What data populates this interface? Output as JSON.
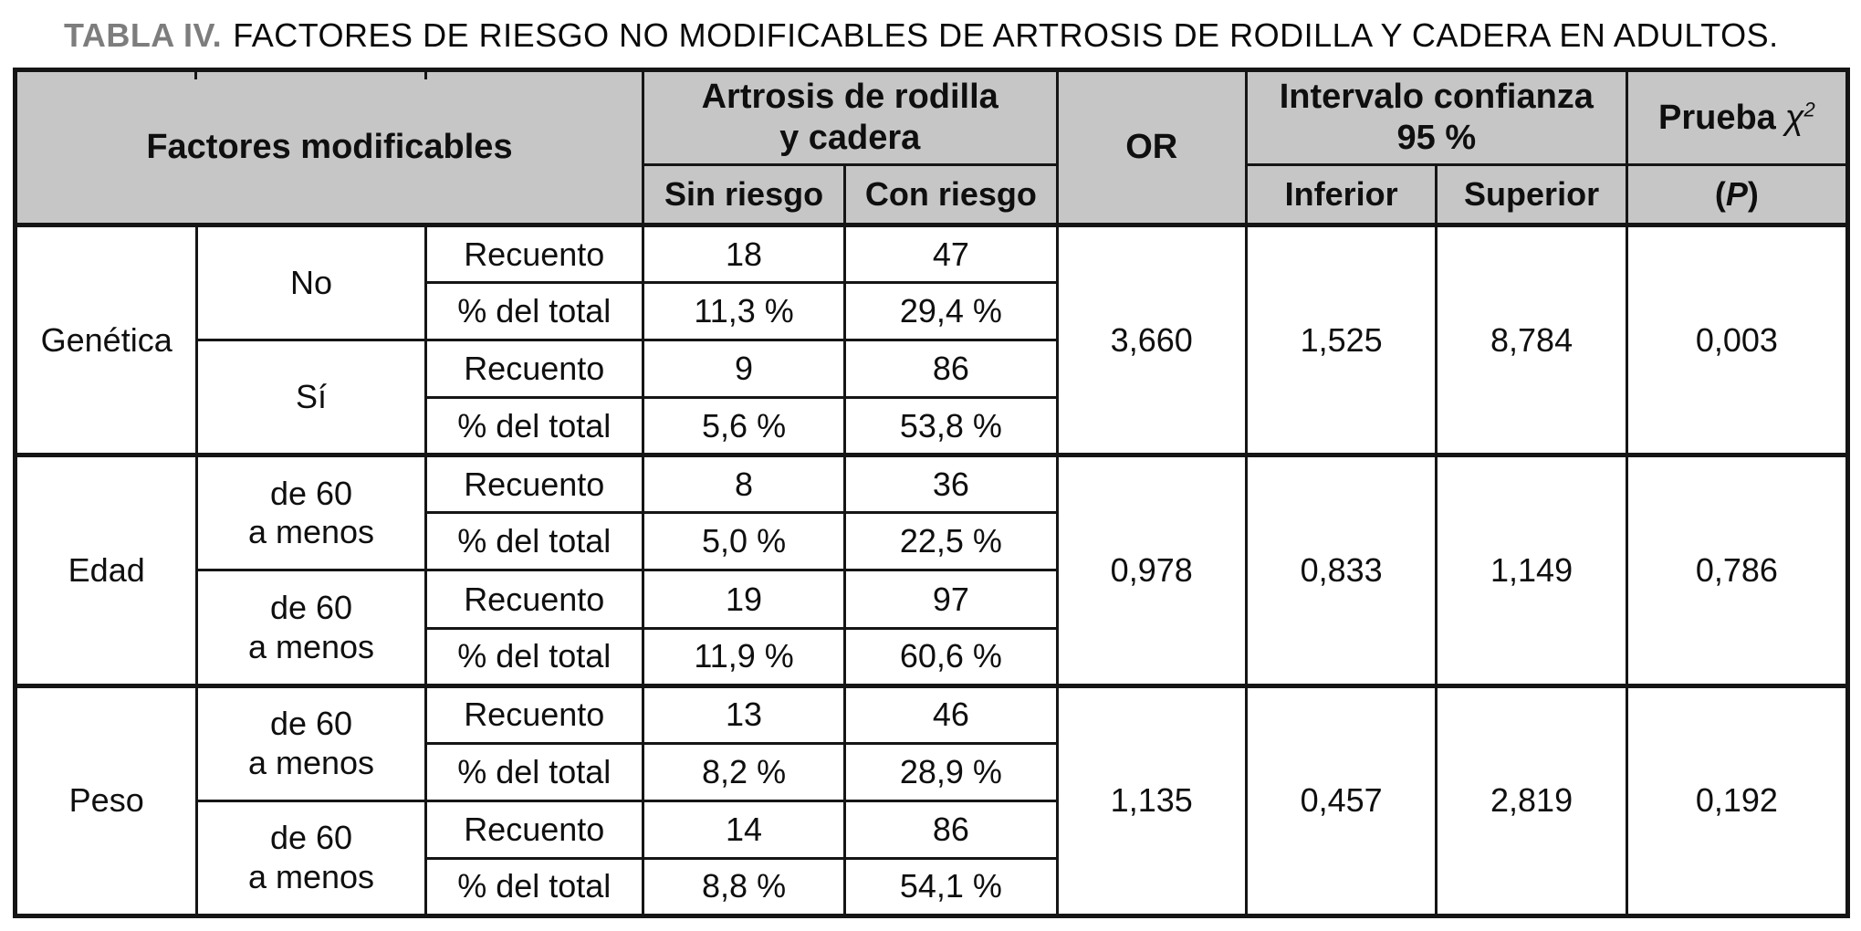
{
  "title": {
    "tag": "TABLA IV.",
    "text": "FACTORES DE RIESGO NO MODIFICABLES DE ARTROSIS DE RODILLA Y CADERA EN ADULTOS."
  },
  "colors": {
    "header_bg": "#c6c6c6",
    "border": "#151515",
    "title_tag": "#7d7d7d",
    "text": "#0f0f0f"
  },
  "header": {
    "factores": "Factores modificables",
    "artrosis": "Artrosis de rodilla\ny cadera",
    "sin_riesgo": "Sin riesgo",
    "con_riesgo": "Con riesgo",
    "or": "OR",
    "intervalo": "Intervalo confianza\n95 %",
    "inferior": "Inferior",
    "superior": "Superior",
    "prueba": "Prueba",
    "chi": "χ",
    "chi_exp": "2",
    "p_open": "(",
    "p_letter": "P",
    "p_close": ")"
  },
  "row_labels": {
    "recuento": "Recuento",
    "pct": "% del total"
  },
  "sections": [
    {
      "factor": "Genética",
      "or": "3,660",
      "ci_inferior": "1,525",
      "ci_superior": "8,784",
      "p": "0,003",
      "groups": [
        {
          "label": "No",
          "recuento": {
            "sin": "18",
            "con": "47"
          },
          "pct": {
            "sin": "11,3 %",
            "con": "29,4 %"
          }
        },
        {
          "label": "Sí",
          "recuento": {
            "sin": "9",
            "con": "86"
          },
          "pct": {
            "sin": "5,6 %",
            "con": "53,8 %"
          }
        }
      ]
    },
    {
      "factor": "Edad",
      "or": "0,978",
      "ci_inferior": "0,833",
      "ci_superior": "1,149",
      "p": "0,786",
      "groups": [
        {
          "label": "de 60\na menos",
          "recuento": {
            "sin": "8",
            "con": "36"
          },
          "pct": {
            "sin": "5,0 %",
            "con": "22,5 %"
          }
        },
        {
          "label": "de 60\na menos",
          "recuento": {
            "sin": "19",
            "con": "97"
          },
          "pct": {
            "sin": "11,9 %",
            "con": "60,6 %"
          }
        }
      ]
    },
    {
      "factor": "Peso",
      "or": "1,135",
      "ci_inferior": "0,457",
      "ci_superior": "2,819",
      "p": "0,192",
      "groups": [
        {
          "label": "de 60\na menos",
          "recuento": {
            "sin": "13",
            "con": "46"
          },
          "pct": {
            "sin": "8,2 %",
            "con": "28,9 %"
          }
        },
        {
          "label": "de 60\na menos",
          "recuento": {
            "sin": "14",
            "con": "86"
          },
          "pct": {
            "sin": "8,8 %",
            "con": "54,1 %"
          }
        }
      ]
    }
  ]
}
